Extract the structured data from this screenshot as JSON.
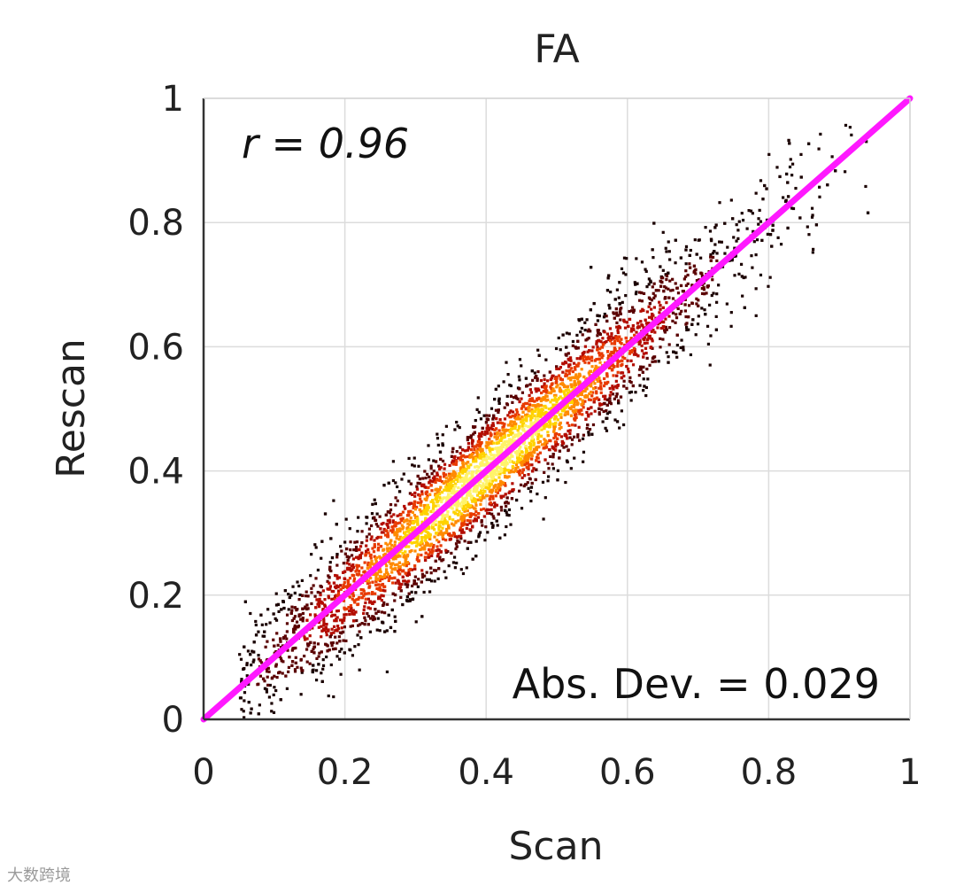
{
  "chart_data": {
    "type": "scatter",
    "title": "FA",
    "xlabel": "Scan",
    "ylabel": "Rescan",
    "xlim": [
      0,
      1
    ],
    "ylim": [
      0,
      1
    ],
    "xticks": [
      "0",
      "0.2",
      "0.4",
      "0.6",
      "0.8",
      "1"
    ],
    "yticks": [
      "0",
      "0.2",
      "0.4",
      "0.6",
      "0.8",
      "1"
    ],
    "grid": true,
    "colormap": "hot (black-red-yellow-white density)",
    "identity_line": {
      "from": [
        0,
        0
      ],
      "to": [
        1,
        1
      ],
      "color": "#ff19ff"
    },
    "point_cloud": {
      "x_range": [
        0.05,
        0.95
      ],
      "center": [
        0.4,
        0.4
      ]
    },
    "annotations": [
      {
        "text": "r = 0.96",
        "position": "top-left"
      },
      {
        "text": "Abs. Dev. = 0.029",
        "position": "bottom-right"
      }
    ]
  },
  "watermark": "大数跨境"
}
